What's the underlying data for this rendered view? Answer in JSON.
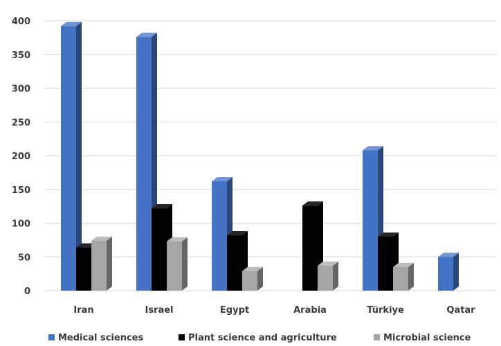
{
  "chart_data": {
    "type": "bar",
    "style": "3d-clustered-column",
    "categories": [
      "Iran",
      "Israel",
      "Egypt",
      "Arabia",
      "Türkiye",
      "Qatar"
    ],
    "series": [
      {
        "name": "Medical sciences",
        "color": "#4472c4",
        "values": [
          392,
          376,
          162,
          0,
          208,
          50
        ]
      },
      {
        "name": "Plant science and agriculture",
        "color": "#000000",
        "values": [
          64,
          122,
          82,
          126,
          80,
          0
        ]
      },
      {
        "name": "Microbial science",
        "color": "#a5a5a5",
        "values": [
          74,
          73,
          29,
          37,
          35,
          0
        ]
      }
    ],
    "ylim": [
      0,
      400
    ],
    "yticks": [
      0,
      50,
      100,
      150,
      200,
      250,
      300,
      350,
      400
    ],
    "grid": true,
    "legend": "bottom"
  }
}
